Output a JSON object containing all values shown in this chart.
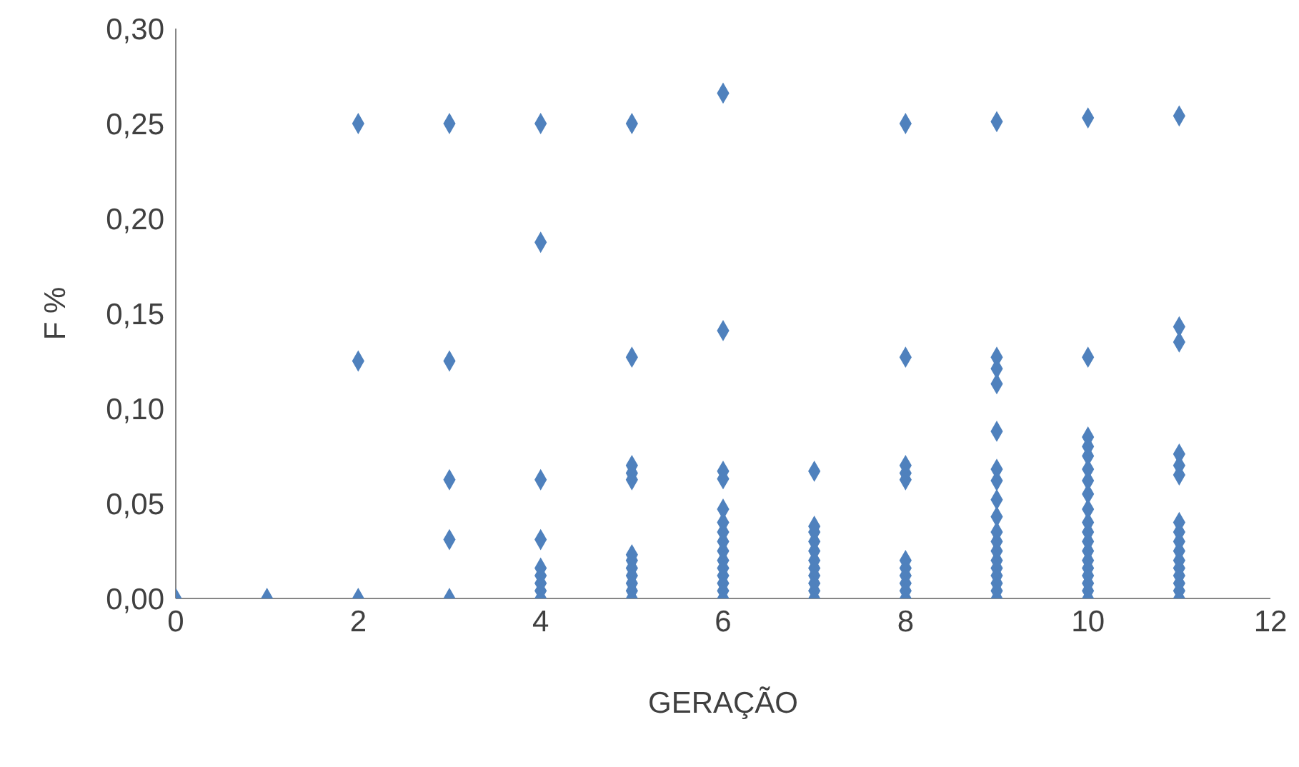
{
  "chart_data": {
    "type": "scatter",
    "xlabel": "GERAÇÃO",
    "ylabel": "F %",
    "marker": "diamond",
    "grid": false,
    "xlim": [
      0,
      12
    ],
    "xticks": [
      0,
      2,
      4,
      6,
      8,
      10,
      12
    ],
    "ylim": [
      0,
      0.3
    ],
    "yticks": [
      {
        "value": 0,
        "label": "0,00"
      },
      {
        "value": 0.05,
        "label": "0,05"
      },
      {
        "value": 0.1,
        "label": "0,10"
      },
      {
        "value": 0.15,
        "label": "0,15"
      },
      {
        "value": 0.2,
        "label": "0,20"
      },
      {
        "value": 0.25,
        "label": "0,25"
      },
      {
        "value": 0.3,
        "label": "0,30"
      }
    ],
    "series": [
      {
        "color": "#4f81bd",
        "x": [
          0,
          1,
          2,
          2,
          2,
          3,
          3,
          3,
          3,
          3,
          4,
          4,
          4,
          4,
          4,
          4,
          4,
          4,
          4,
          5,
          5,
          5,
          5,
          5,
          5,
          5,
          5,
          5,
          5,
          5,
          5,
          6,
          6,
          6,
          6,
          6,
          6,
          6,
          6,
          6,
          6,
          6,
          6,
          6,
          6,
          6,
          7,
          7,
          7,
          7,
          7,
          7,
          7,
          7,
          7,
          7,
          7,
          8,
          8,
          8,
          8,
          8,
          8,
          8,
          8,
          8,
          8,
          8,
          9,
          9,
          9,
          9,
          9,
          9,
          9,
          9,
          9,
          9,
          9,
          9,
          9,
          9,
          9,
          9,
          9,
          9,
          10,
          10,
          10,
          10,
          10,
          10,
          10,
          10,
          10,
          10,
          10,
          10,
          10,
          10,
          10,
          10,
          10,
          10,
          10,
          11,
          11,
          11,
          11,
          11,
          11,
          11,
          11,
          11,
          11,
          11,
          11,
          11,
          11,
          11,
          11
        ],
        "values": [
          0,
          0,
          0,
          0.125,
          0.25,
          0,
          0.031,
          0.0625,
          0.125,
          0.25,
          0,
          0.004,
          0.008,
          0.012,
          0.016,
          0.031,
          0.0625,
          0.1875,
          0.25,
          0,
          0.004,
          0.008,
          0.012,
          0.016,
          0.02,
          0.023,
          0.0625,
          0.066,
          0.07,
          0.127,
          0.25,
          0,
          0.004,
          0.008,
          0.012,
          0.016,
          0.02,
          0.025,
          0.03,
          0.035,
          0.04,
          0.047,
          0.063,
          0.067,
          0.141,
          0.266,
          0,
          0.004,
          0.008,
          0.012,
          0.016,
          0.02,
          0.025,
          0.03,
          0.035,
          0.038,
          0.067,
          0,
          0.004,
          0.008,
          0.012,
          0.016,
          0.02,
          0.0625,
          0.066,
          0.07,
          0.127,
          0.25,
          0,
          0.004,
          0.008,
          0.012,
          0.016,
          0.02,
          0.025,
          0.03,
          0.035,
          0.043,
          0.052,
          0.062,
          0.068,
          0.088,
          0.113,
          0.121,
          0.127,
          0.251,
          0,
          0.004,
          0.008,
          0.012,
          0.016,
          0.02,
          0.025,
          0.03,
          0.035,
          0.04,
          0.047,
          0.055,
          0.062,
          0.068,
          0.075,
          0.08,
          0.085,
          0.127,
          0.253,
          0,
          0.004,
          0.008,
          0.012,
          0.016,
          0.02,
          0.025,
          0.03,
          0.035,
          0.04,
          0.065,
          0.07,
          0.076,
          0.135,
          0.143,
          0.254
        ]
      }
    ]
  }
}
